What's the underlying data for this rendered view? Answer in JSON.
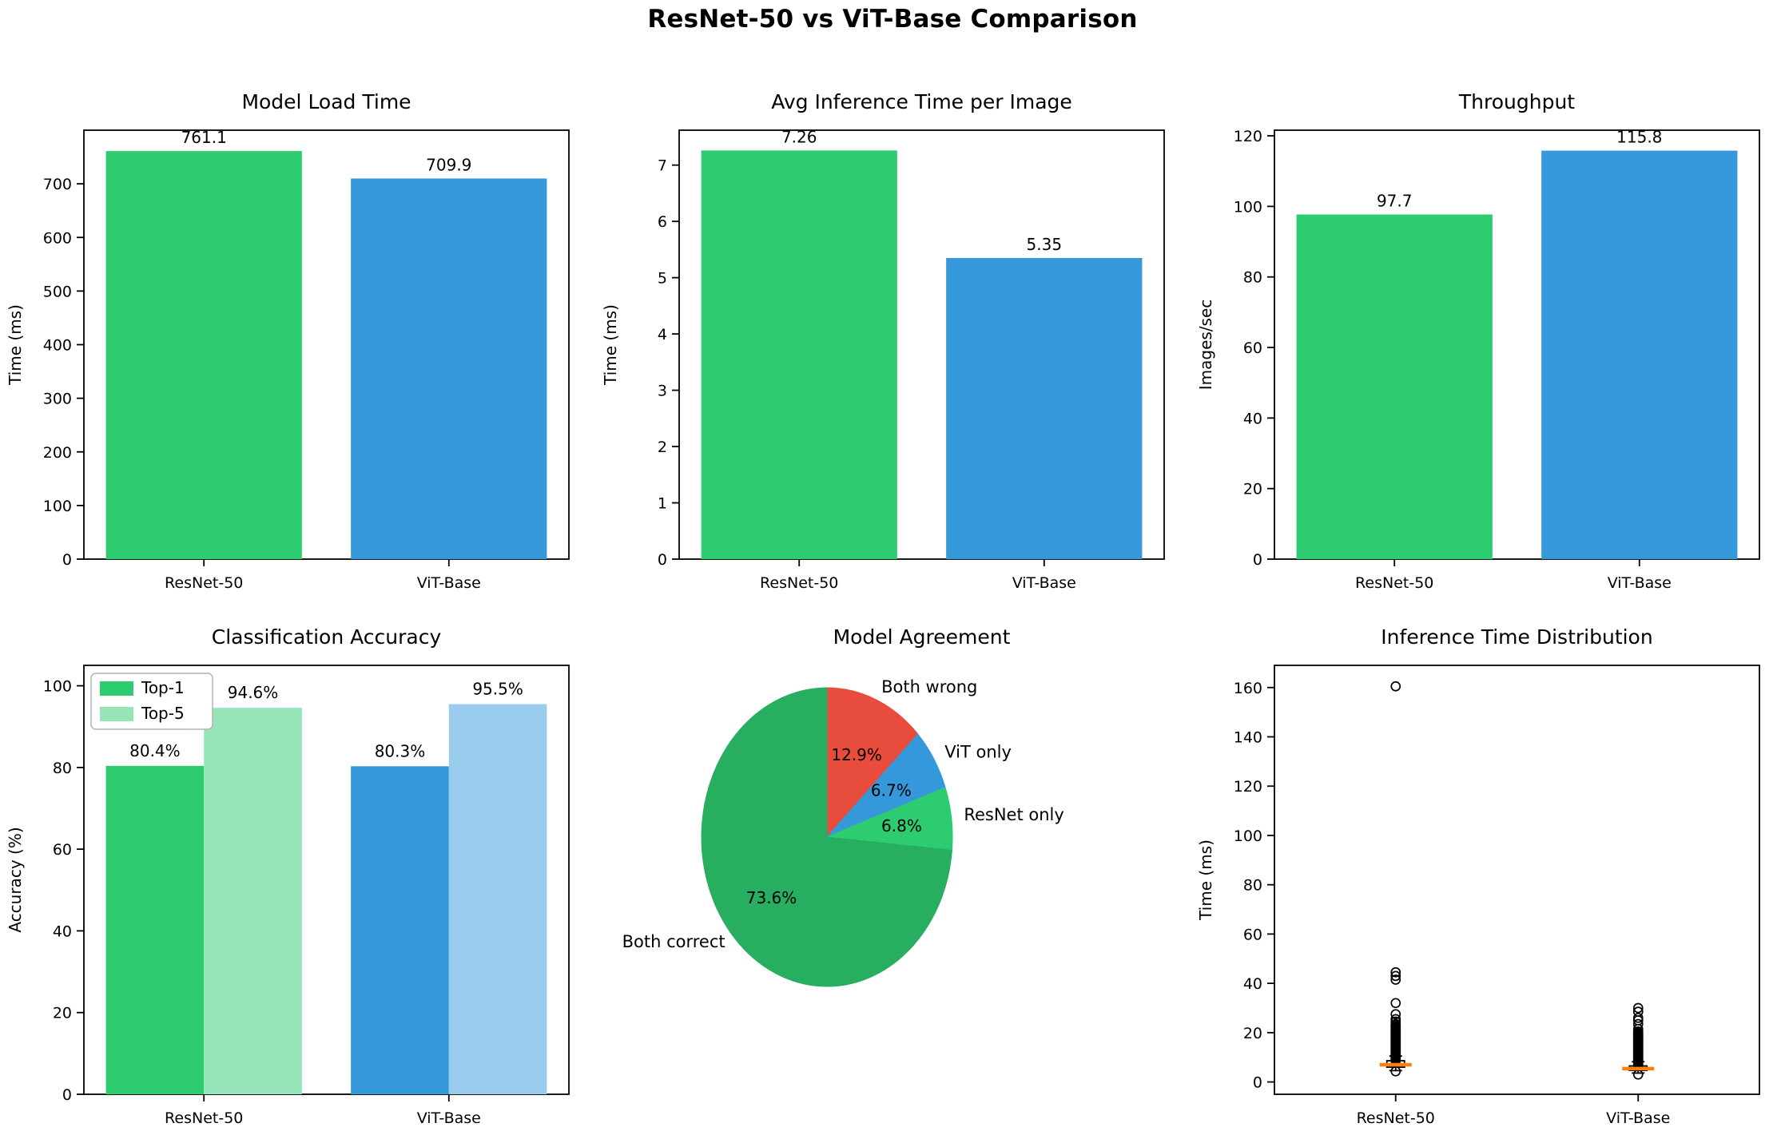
{
  "figure": {
    "title": "ResNet-50 vs ViT-Base Comparison",
    "background": "#ffffff"
  },
  "palette": {
    "resnet_green": "#2ecc71",
    "vit_blue": "#3498db",
    "light_green": "#96e5b8",
    "light_blue": "#99cbed",
    "dark_green": "#27ae60",
    "red": "#e74c3c",
    "median_orange": "#ff7f0e",
    "axis_black": "#000000"
  },
  "chart_data": [
    {
      "type": "bar",
      "title": "Model Load Time",
      "xlabel": "",
      "ylabel": "Time (ms)",
      "categories": [
        "ResNet-50",
        "ViT-Base"
      ],
      "values": [
        761.1,
        709.9
      ],
      "value_labels": [
        "761.1",
        "709.9"
      ],
      "bar_colors": [
        "#2ecc71",
        "#3498db"
      ],
      "ylim": [
        0,
        800
      ],
      "yticks": [
        0,
        100,
        200,
        300,
        400,
        500,
        600,
        700
      ],
      "grid": false
    },
    {
      "type": "bar",
      "title": "Avg Inference Time per Image",
      "xlabel": "",
      "ylabel": "Time (ms)",
      "categories": [
        "ResNet-50",
        "ViT-Base"
      ],
      "values": [
        7.26,
        5.35
      ],
      "value_labels": [
        "7.26",
        "5.35"
      ],
      "bar_colors": [
        "#2ecc71",
        "#3498db"
      ],
      "ylim": [
        0,
        7.62
      ],
      "yticks": [
        0,
        1,
        2,
        3,
        4,
        5,
        6,
        7
      ],
      "grid": false
    },
    {
      "type": "bar",
      "title": "Throughput",
      "xlabel": "",
      "ylabel": "Images/sec",
      "categories": [
        "ResNet-50",
        "ViT-Base"
      ],
      "values": [
        97.7,
        115.8
      ],
      "value_labels": [
        "97.7",
        "115.8"
      ],
      "bar_colors": [
        "#2ecc71",
        "#3498db"
      ],
      "ylim": [
        0,
        121.6
      ],
      "yticks": [
        0,
        20,
        40,
        60,
        80,
        100,
        120
      ],
      "grid": false
    },
    {
      "type": "grouped_bar",
      "title": "Classification Accuracy",
      "xlabel": "",
      "ylabel": "Accuracy (%)",
      "categories": [
        "ResNet-50",
        "ViT-Base"
      ],
      "series": [
        {
          "name": "Top-1",
          "values": [
            80.4,
            80.3
          ],
          "value_labels": [
            "80.4%",
            "80.3%"
          ],
          "colors": [
            "#2ecc71",
            "#3498db"
          ]
        },
        {
          "name": "Top-5",
          "values": [
            94.6,
            95.5
          ],
          "value_labels": [
            "94.6%",
            "95.5%"
          ],
          "colors": [
            "#96e5b8",
            "#99cbed"
          ]
        }
      ],
      "legend": {
        "position": "upper left",
        "items": [
          {
            "label": "Top-1",
            "color": "#2ecc71"
          },
          {
            "label": "Top-5",
            "color": "#96e5b8"
          }
        ]
      },
      "ylim": [
        0,
        105
      ],
      "yticks": [
        0,
        20,
        40,
        60,
        80,
        100
      ],
      "grid": false
    },
    {
      "type": "pie",
      "title": "Model Agreement",
      "start_angle_deg": 0,
      "clockwise": true,
      "slices": [
        {
          "label": "Both wrong",
          "pct": 12.9,
          "pct_label": "12.9%",
          "color": "#e74c3c"
        },
        {
          "label": "ViT only",
          "pct": 6.7,
          "pct_label": "6.7%",
          "color": "#3498db"
        },
        {
          "label": "ResNet only",
          "pct": 6.8,
          "pct_label": "6.8%",
          "color": "#2ecc71"
        },
        {
          "label": "Both correct",
          "pct": 73.6,
          "pct_label": "73.6%",
          "color": "#27ae60"
        }
      ]
    },
    {
      "type": "box",
      "title": "Inference Time Distribution",
      "xlabel": "",
      "ylabel": "Time (ms)",
      "categories": [
        "ResNet-50",
        "ViT-Base"
      ],
      "ylim": [
        -5,
        169
      ],
      "yticks": [
        0,
        20,
        40,
        60,
        80,
        100,
        120,
        140,
        160
      ],
      "median_color": "#ff7f0e",
      "boxes": [
        {
          "label": "ResNet-50",
          "median": 7.0,
          "q1": 6.0,
          "q3": 8.6,
          "whisker_low": 4.6,
          "whisker_high": 10.5,
          "outliers_dense": {
            "min": 8.6,
            "max": 23.5,
            "count": 60
          },
          "outliers": [
            24.5,
            25.5,
            27.5,
            32,
            41.5,
            43,
            44.5,
            160.5
          ],
          "outliers_low": [
            4.3
          ]
        },
        {
          "label": "ViT-Base",
          "median": 5.4,
          "q1": 4.7,
          "q3": 6.5,
          "whisker_low": 3.6,
          "whisker_high": 8.2,
          "outliers_dense": {
            "min": 6.5,
            "max": 20.5,
            "count": 60
          },
          "outliers": [
            21.5,
            23.5,
            25.0,
            26.0,
            28.5,
            30.0
          ],
          "outliers_low": [
            3.0
          ]
        }
      ]
    }
  ]
}
